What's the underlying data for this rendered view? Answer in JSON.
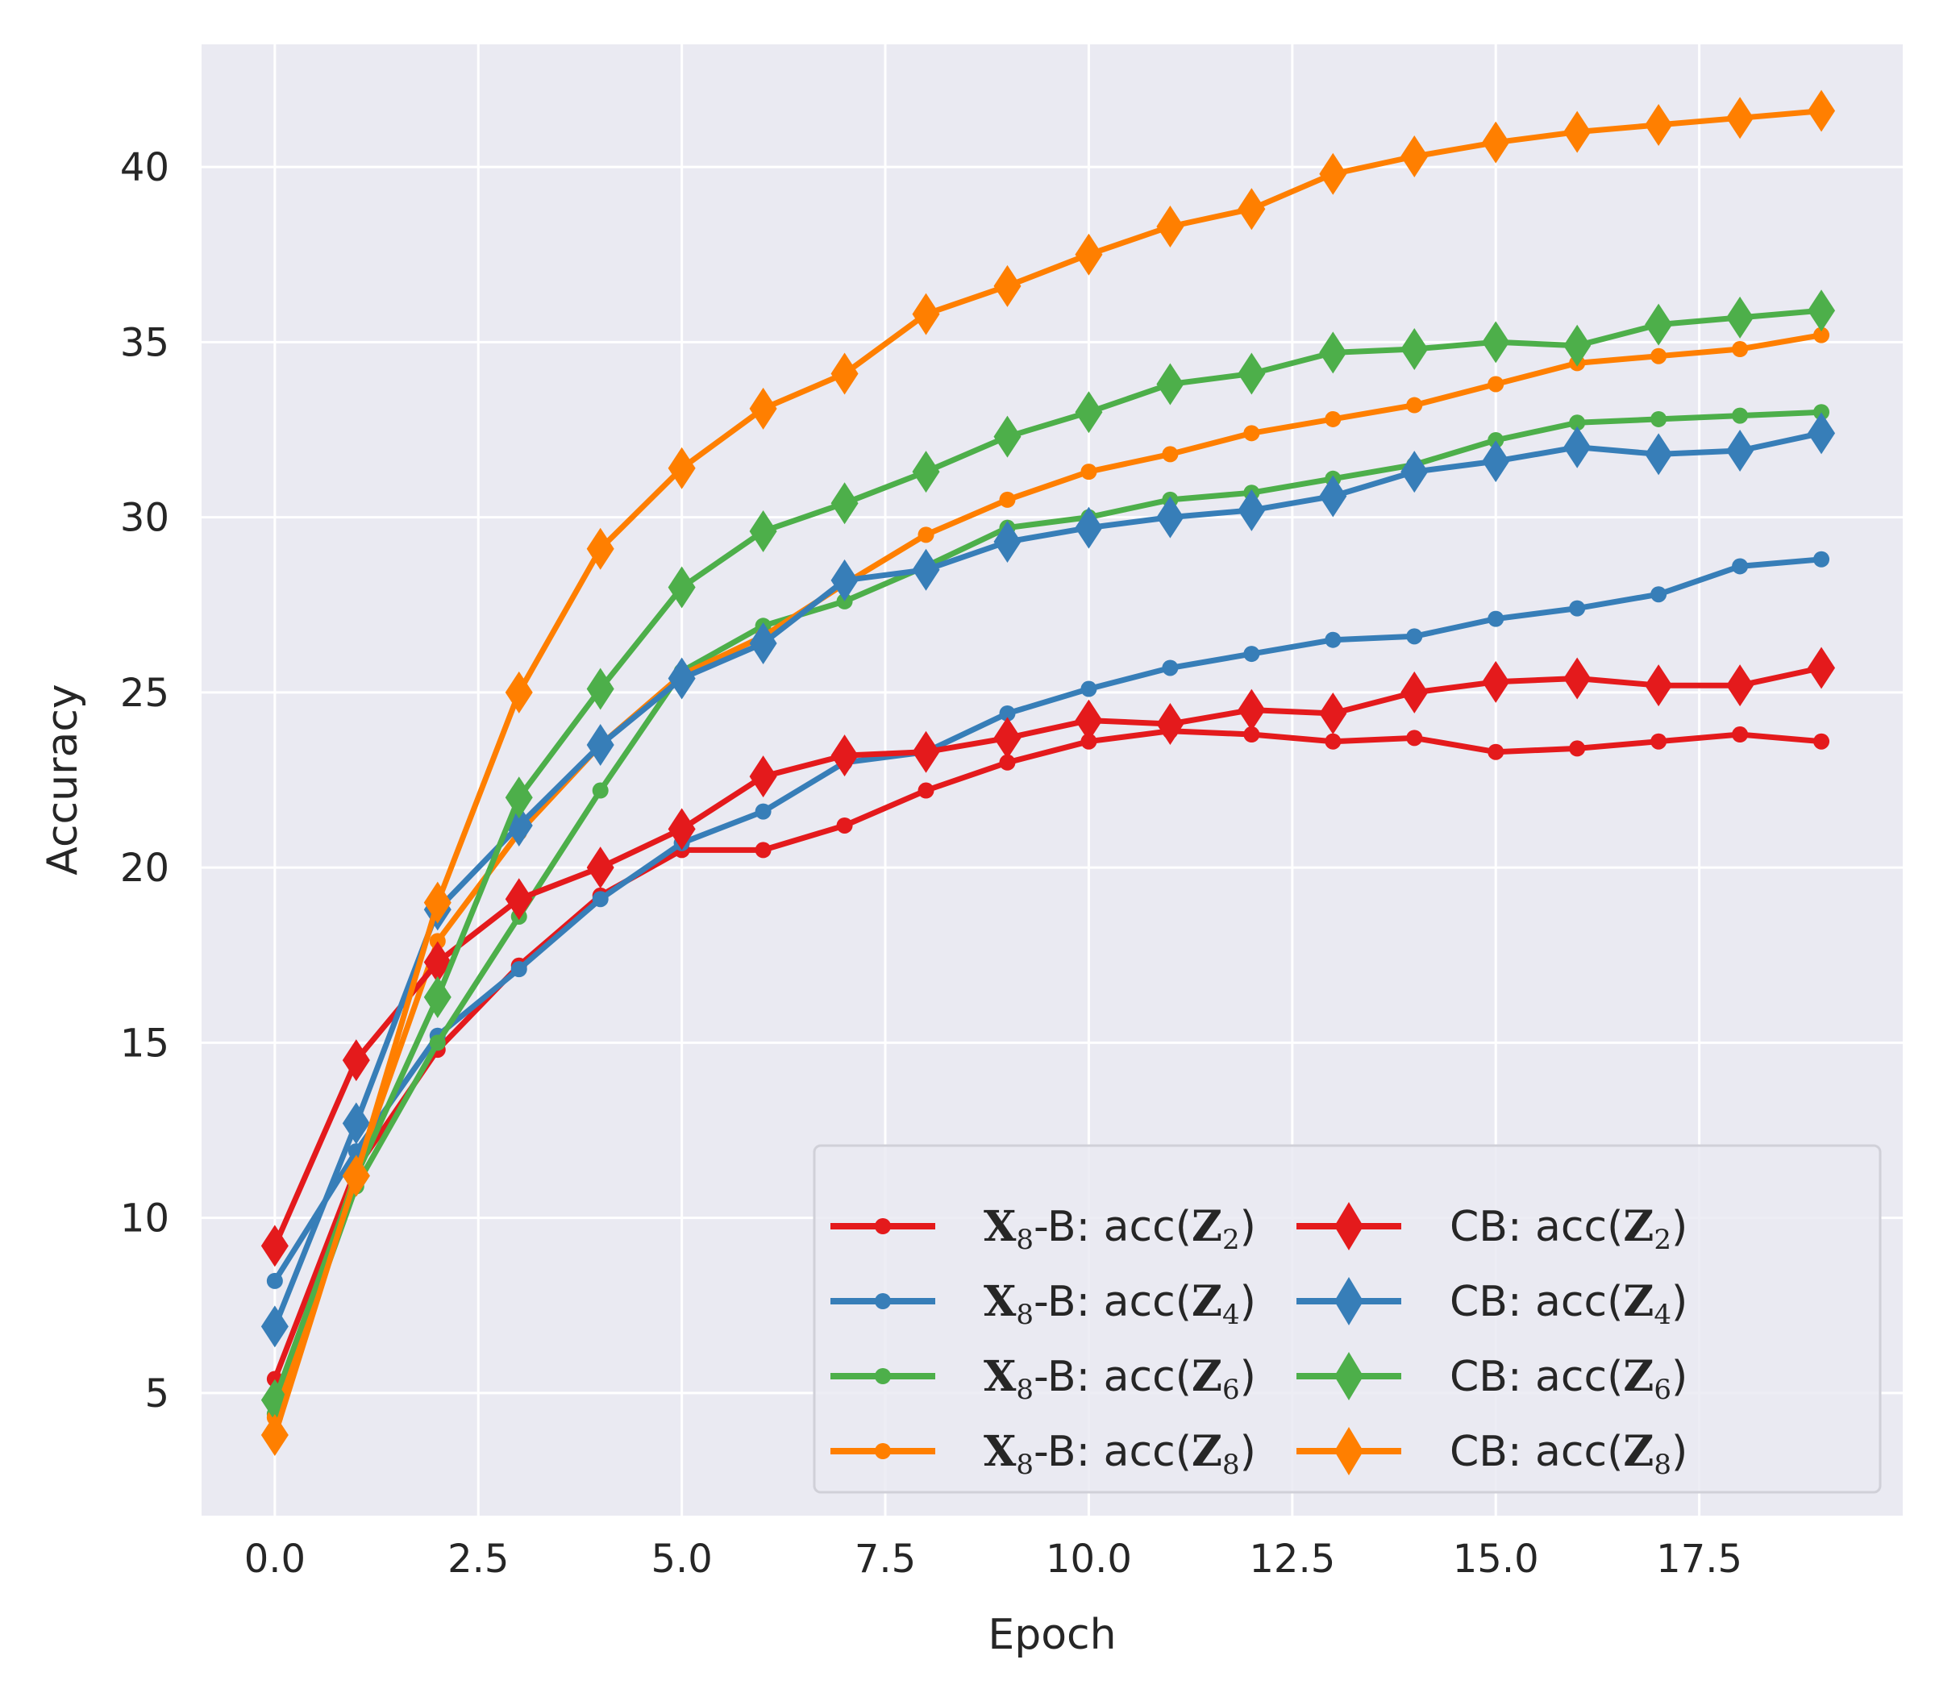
{
  "chart_data": {
    "type": "line",
    "title": "",
    "xlabel": "Epoch",
    "ylabel": "Accuracy",
    "xlim": [
      -0.9,
      20.0
    ],
    "ylim": [
      1.5,
      43.5
    ],
    "xticks": [
      0.0,
      2.5,
      5.0,
      7.5,
      10.0,
      12.5,
      15.0,
      17.5
    ],
    "xtick_labels": [
      "0.0",
      "2.5",
      "5.0",
      "7.5",
      "10.0",
      "12.5",
      "15.0",
      "17.5"
    ],
    "yticks": [
      5,
      10,
      15,
      20,
      25,
      30,
      35,
      40
    ],
    "ytick_labels": [
      "5",
      "10",
      "15",
      "20",
      "25",
      "30",
      "35",
      "40"
    ],
    "grid": true,
    "legend_position": "lower-right",
    "x": [
      0,
      1,
      2,
      3,
      4,
      5,
      6,
      7,
      8,
      9,
      10,
      11,
      12,
      13,
      14,
      15,
      16,
      17,
      18,
      19
    ],
    "series": [
      {
        "name": "X8-B: acc(Z2)",
        "prefix": "X",
        "prefix_sub": "8",
        "model": "-B",
        "z_sub": "2",
        "color": "#e41a1c",
        "marker": "circle",
        "values": [
          5.4,
          11.4,
          14.8,
          17.2,
          19.2,
          20.5,
          20.5,
          21.2,
          22.2,
          23.0,
          23.6,
          23.9,
          23.8,
          23.6,
          23.7,
          23.3,
          23.4,
          23.6,
          23.8,
          23.6
        ]
      },
      {
        "name": "X8-B: acc(Z4)",
        "prefix": "X",
        "prefix_sub": "8",
        "model": "-B",
        "z_sub": "4",
        "color": "#377eb8",
        "marker": "circle",
        "values": [
          8.2,
          11.9,
          15.2,
          17.1,
          19.1,
          20.7,
          21.6,
          23.0,
          23.3,
          24.4,
          25.1,
          25.7,
          26.1,
          26.5,
          26.6,
          27.1,
          27.4,
          27.8,
          28.6,
          28.8
        ]
      },
      {
        "name": "X8-B: acc(Z6)",
        "prefix": "X",
        "prefix_sub": "8",
        "model": "-B",
        "z_sub": "6",
        "color": "#4daf4a",
        "marker": "circle",
        "values": [
          4.4,
          10.9,
          15.0,
          18.6,
          22.2,
          25.6,
          26.9,
          27.6,
          28.6,
          29.7,
          30.0,
          30.5,
          30.7,
          31.1,
          31.5,
          32.2,
          32.7,
          32.8,
          32.9,
          33.0
        ]
      },
      {
        "name": "X8-B: acc(Z8)",
        "prefix": "X",
        "prefix_sub": "8",
        "model": "-B",
        "z_sub": "8",
        "color": "#ff7f00",
        "marker": "circle",
        "values": [
          4.3,
          11.3,
          17.9,
          21.0,
          23.5,
          25.5,
          26.6,
          28.1,
          29.5,
          30.5,
          31.3,
          31.8,
          32.4,
          32.8,
          33.2,
          33.8,
          34.4,
          34.6,
          34.8,
          35.2
        ]
      },
      {
        "name": "CB: acc(Z2)",
        "prefix": "",
        "prefix_sub": "",
        "model": "CB",
        "z_sub": "2",
        "color": "#e41a1c",
        "marker": "diamond",
        "values": [
          9.2,
          14.5,
          17.3,
          19.1,
          20.0,
          21.1,
          22.6,
          23.2,
          23.3,
          23.7,
          24.2,
          24.1,
          24.5,
          24.4,
          25.0,
          25.3,
          25.4,
          25.2,
          25.2,
          25.7
        ]
      },
      {
        "name": "CB: acc(Z4)",
        "prefix": "",
        "prefix_sub": "",
        "model": "CB",
        "z_sub": "4",
        "color": "#377eb8",
        "marker": "diamond",
        "values": [
          6.9,
          12.7,
          18.8,
          21.2,
          23.5,
          25.4,
          26.4,
          28.2,
          28.5,
          29.3,
          29.7,
          30.0,
          30.2,
          30.6,
          31.3,
          31.6,
          32.0,
          31.8,
          31.9,
          32.4
        ]
      },
      {
        "name": "CB: acc(Z6)",
        "prefix": "",
        "prefix_sub": "",
        "model": "CB",
        "z_sub": "6",
        "color": "#4daf4a",
        "marker": "diamond",
        "values": [
          4.8,
          11.2,
          16.3,
          22.0,
          25.1,
          28.0,
          29.6,
          30.4,
          31.3,
          32.3,
          33.0,
          33.8,
          34.1,
          34.7,
          34.8,
          35.0,
          34.9,
          35.5,
          35.7,
          35.9
        ]
      },
      {
        "name": "CB: acc(Z8)",
        "prefix": "",
        "prefix_sub": "",
        "model": "CB",
        "z_sub": "8",
        "color": "#ff7f00",
        "marker": "diamond",
        "values": [
          3.8,
          11.2,
          19.0,
          25.0,
          29.1,
          31.4,
          33.1,
          34.1,
          35.8,
          36.6,
          37.5,
          38.3,
          38.8,
          39.8,
          40.3,
          40.7,
          41.0,
          41.2,
          41.4,
          41.6
        ]
      }
    ],
    "legend_labels": {
      "acc_open": ": acc(",
      "z_letter": "Z",
      "close": ")"
    }
  }
}
